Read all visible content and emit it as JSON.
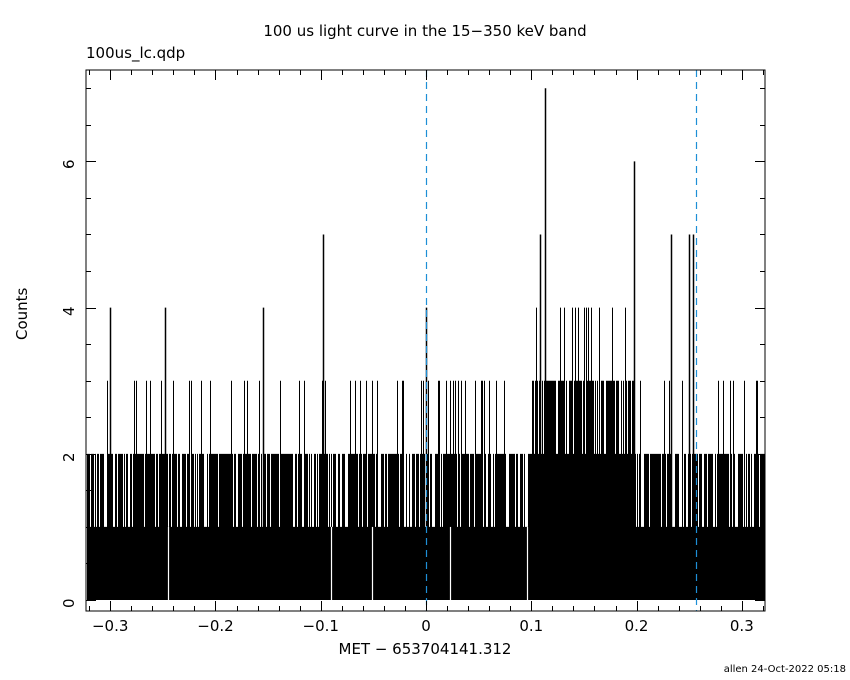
{
  "chart_data": {
    "type": "bar",
    "title": "100 us light curve in the 15−350 keV band",
    "subtitle": "100us_lc.qdp",
    "xlabel": "MET − 653704141.312",
    "ylabel": "Counts",
    "footer": "allen 24-Oct-2022 05:18",
    "xlim": [
      -0.323,
      0.322
    ],
    "ylim": [
      -0.15,
      7.25
    ],
    "x_ticks": [
      -0.3,
      -0.2,
      -0.1,
      0,
      0.1,
      0.2,
      0.3
    ],
    "x_tick_labels": [
      "−0.3",
      "−0.2",
      "−0.1",
      "0",
      "0.1",
      "0.2",
      "0.3"
    ],
    "y_ticks": [
      0,
      2,
      4,
      6
    ],
    "y_tick_labels": [
      "0",
      "2",
      "4",
      "6"
    ],
    "bin_width": 0.0001,
    "vertical_markers": [
      0.0,
      0.256
    ],
    "marker_color": "#1e8fd6",
    "spikes": [
      {
        "x": -0.3,
        "y": 4
      },
      {
        "x": -0.248,
        "y": 4
      },
      {
        "x": -0.155,
        "y": 4
      },
      {
        "x": -0.098,
        "y": 5
      },
      {
        "x": 0.0,
        "y": 4
      },
      {
        "x": 0.108,
        "y": 5
      },
      {
        "x": 0.113,
        "y": 7
      },
      {
        "x": 0.198,
        "y": 6
      },
      {
        "x": 0.233,
        "y": 5
      },
      {
        "x": 0.25,
        "y": 5
      },
      {
        "x": 0.254,
        "y": 5
      }
    ],
    "gaps_zero_counts": [
      -0.245,
      -0.09,
      -0.051,
      0.023,
      0.096
    ],
    "segments": [
      {
        "x_start": -0.323,
        "x_end": 0.1,
        "baseline_counts": 1,
        "typical_max_counts": 2,
        "occasional_max_counts": 3
      },
      {
        "x_start": 0.1,
        "x_end": 0.198,
        "baseline_counts": 2,
        "typical_max_counts": 3,
        "occasional_max_counts": 4
      },
      {
        "x_start": 0.198,
        "x_end": 0.322,
        "baseline_counts": 1,
        "typical_max_counts": 2,
        "occasional_max_counts": 3
      }
    ]
  }
}
